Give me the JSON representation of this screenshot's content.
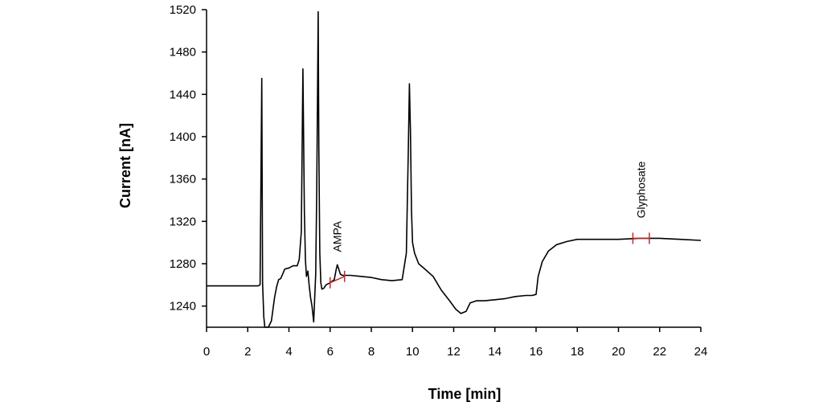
{
  "chart_data": {
    "type": "line",
    "title": "",
    "xlabel": "Time [min]",
    "ylabel": "Current [nA]",
    "xlim": [
      0,
      24
    ],
    "ylim": [
      1220,
      1520
    ],
    "x_ticks": [
      0,
      2,
      4,
      6,
      8,
      10,
      12,
      14,
      16,
      18,
      20,
      22,
      24
    ],
    "y_ticks": [
      1240,
      1280,
      1320,
      1360,
      1400,
      1440,
      1480,
      1520
    ],
    "grid": false,
    "series": [
      {
        "color": "#000000",
        "x": [
          0,
          1.0,
          2.0,
          2.5,
          2.6,
          2.68,
          2.72,
          2.78,
          2.83,
          2.9,
          3.0,
          3.15,
          3.3,
          3.4,
          3.5,
          3.6,
          3.8,
          4.0,
          4.2,
          4.4,
          4.5,
          4.6,
          4.68,
          4.75,
          4.8,
          4.85,
          4.92,
          4.98,
          5.05,
          5.12,
          5.2,
          5.3,
          5.35,
          5.42,
          5.45,
          5.5,
          5.55,
          5.6,
          5.7,
          5.8,
          6.0,
          6.2,
          6.3,
          6.35,
          6.4,
          6.5,
          6.6,
          6.8,
          7.0,
          7.5,
          8.0,
          8.5,
          9.0,
          9.5,
          9.7,
          9.8,
          9.85,
          9.9,
          9.95,
          10.0,
          10.1,
          10.3,
          10.6,
          11.0,
          11.4,
          11.8,
          12.1,
          12.35,
          12.6,
          12.8,
          13.1,
          13.5,
          14.0,
          14.5,
          15.0,
          15.5,
          15.8,
          16.0,
          16.1,
          16.3,
          16.6,
          17.0,
          17.5,
          18.0,
          19.0,
          20.0,
          21.0,
          22.0,
          23.0,
          24.0
        ],
        "y": [
          1259,
          1259,
          1259,
          1259,
          1260,
          1455,
          1262,
          1230,
          1183,
          1195,
          1210,
          1226,
          1248,
          1258,
          1265,
          1266,
          1275,
          1276,
          1278,
          1278,
          1284,
          1310,
          1464,
          1330,
          1284,
          1268,
          1273,
          1260,
          1248,
          1240,
          1225,
          1270,
          1350,
          1518,
          1390,
          1290,
          1262,
          1256,
          1257,
          1260,
          1262,
          1265,
          1275,
          1279,
          1276,
          1270,
          1269,
          1269,
          1269,
          1268,
          1267,
          1265,
          1264,
          1265,
          1290,
          1390,
          1450,
          1405,
          1330,
          1300,
          1290,
          1280,
          1275,
          1268,
          1255,
          1245,
          1237,
          1233,
          1235,
          1243,
          1245,
          1245,
          1246,
          1247,
          1249,
          1250,
          1250,
          1251,
          1268,
          1282,
          1292,
          1298,
          1301,
          1303,
          1303,
          1303,
          1304,
          1304,
          1303,
          1302
        ]
      }
    ],
    "annotations": [
      {
        "text": "AMPA",
        "x_start": 6.0,
        "x_end": 6.7,
        "y_start": 1262,
        "y_end": 1268,
        "label_x": 6.35,
        "label_y": 1291
      },
      {
        "text": "Glyphosate",
        "x_start": 20.7,
        "x_end": 21.5,
        "y_start": 1304,
        "y_end": 1304,
        "label_x": 21.1,
        "label_y": 1323
      }
    ],
    "integration_marker_color": "#c0282c"
  }
}
